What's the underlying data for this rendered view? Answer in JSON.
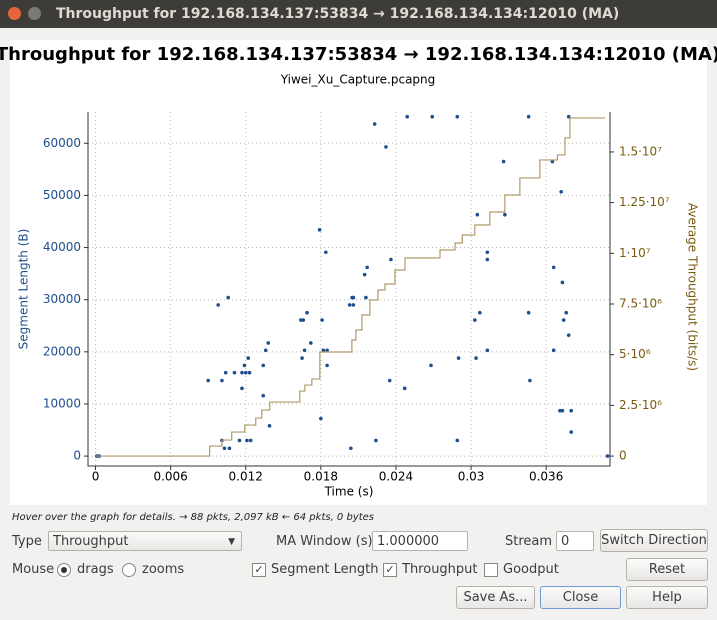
{
  "window": {
    "title": "Throughput for 192.168.134.137:53834 → 192.168.134.134:12010 (MA)"
  },
  "chart_data": {
    "type": "scatter",
    "title": "Throughput for 192.168.134.137:53834 → 192.168.134.134:12010 (MA)",
    "subtitle": "Yiwei_Xu_Capture.pcapng",
    "x_label": "Time (s)",
    "y_label": "Segment Length (B)",
    "y2_label": "Average Throughput (bits/s)",
    "xlim": [
      -0.0006,
      0.0411
    ],
    "xticks": [
      0,
      0.006,
      0.012,
      0.018,
      0.024,
      0.03,
      0.036
    ],
    "ylim": [
      -1900,
      66000
    ],
    "yticks": [
      0,
      10000,
      20000,
      30000,
      40000,
      50000,
      60000
    ],
    "y2lim": [
      -490000,
      16970000
    ],
    "y2ticks": [
      0,
      {
        "value": 2500000,
        "label": "2.5·10⁶"
      },
      {
        "value": 5000000,
        "label": "5·10⁶"
      },
      {
        "value": 7500000,
        "label": "7.5·10⁶"
      },
      {
        "value": 10000000,
        "label": "1·10⁷"
      },
      {
        "value": 12500000,
        "label": "1.25·10⁷"
      },
      {
        "value": 15000000,
        "label": "1.5·10⁷"
      }
    ],
    "grid": true,
    "series": [
      {
        "name": "Segment Length",
        "type": "scatter",
        "color": "#1f4e8c",
        "x": [
          0.0001,
          0.0003,
          0.009,
          0.0098,
          0.0101,
          0.0101,
          0.0103,
          0.0104,
          0.0106,
          0.0107,
          0.0111,
          0.0115,
          0.0117,
          0.0117,
          0.0119,
          0.012,
          0.0121,
          0.0122,
          0.0123,
          0.0124,
          0.0134,
          0.0134,
          0.0136,
          0.0138,
          0.0139,
          0.0164,
          0.0165,
          0.0166,
          0.0167,
          0.0169,
          0.0172,
          0.0179,
          0.018,
          0.0181,
          0.0182,
          0.0184,
          0.0185,
          0.0185,
          0.0203,
          0.0204,
          0.0205,
          0.0206,
          0.0206,
          0.0215,
          0.0216,
          0.0217,
          0.0223,
          0.0224,
          0.0232,
          0.0235,
          0.0236,
          0.0247,
          0.0249,
          0.0269,
          0.0268,
          0.0289,
          0.0289,
          0.029,
          0.0303,
          0.0304,
          0.0305,
          0.0307,
          0.0313,
          0.0313,
          0.0313,
          0.0326,
          0.0327,
          0.0346,
          0.0346,
          0.0347,
          0.0365,
          0.0366,
          0.0366,
          0.0371,
          0.0372,
          0.0373,
          0.0373,
          0.0374,
          0.0376,
          0.0378,
          0.0378,
          0.038,
          0.038,
          0.0409
        ],
        "values": [
          0,
          0,
          14500,
          29000,
          14500,
          3000,
          1500,
          16000,
          30400,
          1500,
          16000,
          3000,
          13000,
          16000,
          17400,
          16000,
          3000,
          18800,
          16000,
          3000,
          11600,
          17400,
          20300,
          21700,
          5800,
          26100,
          18800,
          26100,
          20300,
          27500,
          21700,
          43400,
          7200,
          26100,
          20300,
          39100,
          17400,
          20300,
          29000,
          1500,
          30400,
          29000,
          30400,
          34800,
          30400,
          36200,
          63700,
          3000,
          59300,
          14500,
          37700,
          13000,
          65100,
          65100,
          17400,
          65100,
          3000,
          18800,
          26100,
          18800,
          46300,
          27500,
          20300,
          39100,
          37700,
          56500,
          46300,
          65100,
          27500,
          14500,
          56500,
          20300,
          36200,
          8700,
          50700,
          33300,
          8700,
          26100,
          27500,
          65100,
          23200,
          8700,
          4600,
          0
        ]
      },
      {
        "name": "Throughput",
        "type": "step",
        "axis": "y2",
        "color": "#b09a6a",
        "x": [
          0,
          0.00872,
          0.00912,
          0.0101,
          0.01088,
          0.01192,
          0.0128,
          0.01328,
          0.01392,
          0.01632,
          0.01672,
          0.01728,
          0.01792,
          0.02048,
          0.0208,
          0.02128,
          0.02192,
          0.02256,
          0.02312,
          0.02392,
          0.02472,
          0.02752,
          0.02872,
          0.0293,
          0.0303,
          0.0315,
          0.0327,
          0.0339,
          0.0355,
          0.0369,
          0.0375,
          0.0379,
          0.0407
        ],
        "values": [
          0,
          0,
          493000,
          789000,
          1184000,
          1530000,
          1875000,
          2270000,
          2664000,
          3207000,
          3503000,
          3799000,
          5132000,
          5724000,
          6217000,
          6957000,
          7697000,
          8191000,
          8487000,
          9178000,
          9770000,
          10164000,
          10510000,
          10905000,
          11398000,
          12039000,
          12878000,
          13717000,
          14605000,
          14852000,
          15691000,
          16678000,
          16678000
        ]
      }
    ]
  },
  "controls": {
    "hint": "Hover over the graph for details. → 88 pkts, 2,097 kB ← 64 pkts, 0 bytes",
    "type_label": "Type",
    "type_value": "Throughput",
    "ma_label": "MA Window (s)",
    "ma_value": "1.000000",
    "stream_label": "Stream",
    "stream_value": "0",
    "switch": "Switch Direction",
    "mouse_label": "Mouse",
    "drags": "drags",
    "zooms": "zooms",
    "goodput": "Goodput",
    "reset": "Reset",
    "save": "Save As...",
    "close": "Close",
    "help": "Help"
  }
}
